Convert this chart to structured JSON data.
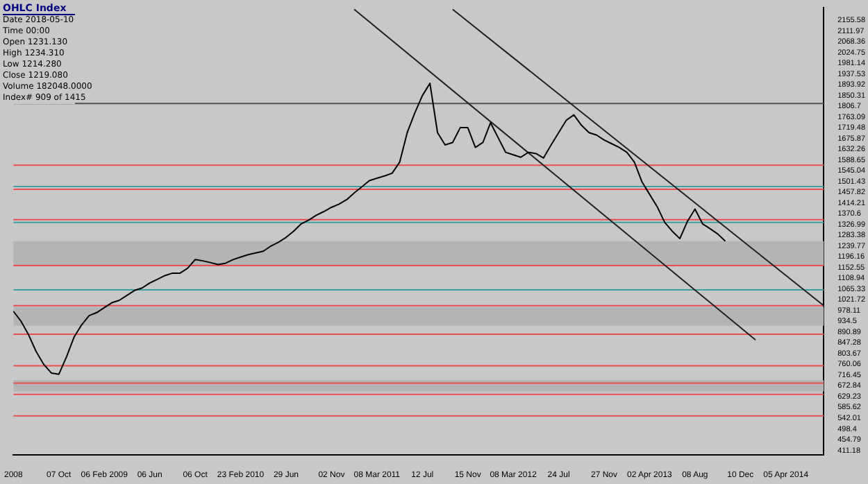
{
  "chart_data": {
    "type": "line",
    "title": "OHLC Index",
    "annotations": [
      "Date 2018-05-10",
      "Time 00:00",
      "Open 1231.130",
      "High 1234.310",
      "Low 1214.280",
      "Close 1219.080",
      "Volume 182048.0000",
      "Index# 909 of 1415"
    ],
    "categories": [
      "2008",
      null,
      null,
      null,
      null,
      null,
      "07 Oct",
      null,
      null,
      null,
      null,
      null,
      "06 Feb 2009",
      null,
      null,
      null,
      null,
      null,
      "06 Jun",
      null,
      null,
      null,
      null,
      null,
      "06 Oct",
      null,
      null,
      null,
      null,
      null,
      "23 Feb 2010",
      null,
      null,
      null,
      null,
      null,
      "29 Jun",
      null,
      null,
      null,
      null,
      null,
      "02 Nov",
      null,
      null,
      null,
      null,
      null,
      "08 Mar 2011",
      null,
      null,
      null,
      null,
      null,
      "12 Jul",
      null,
      null,
      null,
      null,
      null,
      "15 Nov",
      null,
      null,
      null,
      null,
      null,
      "08 Mar 2012",
      null,
      null,
      null,
      null,
      null,
      "24 Jul",
      null,
      null,
      null,
      null,
      null,
      "27 Nov",
      null,
      null,
      null,
      null,
      null,
      "02 Apr 2013",
      null,
      null,
      null,
      null,
      null,
      "08 Aug",
      null,
      null,
      null,
      null,
      null,
      "10 Dec",
      null,
      null,
      null,
      null,
      null,
      "05 Apr 2014",
      null,
      null,
      null,
      null,
      null
    ],
    "series": [
      {
        "color": "#000000",
        "values": [
          975,
          935,
          880,
          812,
          760,
          725,
          720,
          790,
          870,
          920,
          958,
          970,
          990,
          1010,
          1020,
          1040,
          1060,
          1070,
          1090,
          1105,
          1120,
          1130,
          1130,
          1150,
          1185,
          1180,
          1173,
          1165,
          1170,
          1185,
          1195,
          1205,
          1212,
          1219,
          1240,
          1255,
          1275,
          1300,
          1330,
          1345,
          1365,
          1380,
          1397,
          1410,
          1428,
          1455,
          1480,
          1505,
          1515,
          1524,
          1535,
          1580,
          1700,
          1780,
          1850,
          1900,
          1700,
          1650,
          1660,
          1720,
          1720,
          1640,
          1660,
          1740,
          1680,
          1620,
          1610,
          1600,
          1620,
          1615,
          1597,
          1650,
          1700,
          1750,
          1772,
          1730,
          1700,
          1690,
          1670,
          1655,
          1640,
          1620,
          1580,
          1500,
          1450,
          1400,
          1336,
          1300,
          1270,
          1340,
          1390,
          1330,
          1310,
          1289,
          1260,
          null,
          null,
          null,
          null,
          null,
          null,
          null,
          null,
          null,
          null,
          null,
          null,
          null
        ]
      },
      {
        "type": "line",
        "color": "#202020",
        "values": [
          null,
          null,
          null,
          null,
          null,
          null,
          null,
          null,
          null,
          null,
          null,
          null,
          null,
          null,
          null,
          null,
          null,
          null,
          null,
          null,
          null,
          null,
          null,
          null,
          null,
          null,
          null,
          null,
          null,
          null,
          null,
          null,
          null,
          null,
          null,
          null,
          null,
          null,
          null,
          null,
          null,
          null,
          null,
          null,
          null,
          null,
          null,
          null,
          null,
          null,
          null,
          null,
          null,
          null,
          null,
          null,
          null,
          null,
          2200,
          null,
          null,
          null,
          null,
          null,
          null,
          null,
          null,
          null,
          null,
          null,
          null,
          null,
          null,
          null,
          null,
          null,
          null,
          null,
          null,
          null,
          null,
          null,
          null,
          null,
          null,
          null,
          null,
          null,
          null,
          null,
          null,
          null,
          null,
          null,
          null,
          null,
          null,
          null,
          null,
          null,
          null,
          null,
          null,
          null,
          null,
          null,
          null,
          998
        ]
      },
      {
        "type": "line",
        "color": "#202020",
        "values": [
          null,
          null,
          null,
          null,
          null,
          null,
          null,
          null,
          null,
          null,
          null,
          null,
          null,
          null,
          null,
          null,
          null,
          null,
          null,
          null,
          null,
          null,
          null,
          null,
          null,
          null,
          null,
          null,
          null,
          null,
          null,
          null,
          null,
          null,
          null,
          null,
          null,
          null,
          null,
          null,
          null,
          null,
          null,
          null,
          null,
          2200,
          null,
          null,
          null,
          null,
          null,
          null,
          null,
          null,
          null,
          null,
          null,
          null,
          null,
          null,
          null,
          null,
          null,
          null,
          null,
          null,
          null,
          null,
          null,
          null,
          null,
          null,
          null,
          null,
          null,
          null,
          null,
          null,
          null,
          null,
          null,
          null,
          null,
          null,
          null,
          null,
          null,
          null,
          null,
          null,
          null,
          null,
          null,
          null,
          null,
          null,
          null,
          null,
          859,
          null,
          null,
          null,
          null,
          null,
          null,
          null,
          null,
          null
        ]
      }
    ],
    "ylim": [
      394,
      2208
    ],
    "yticks": [
      411.18,
      454.79,
      498.4,
      542.01,
      585.62,
      629.23,
      672.84,
      716.45,
      760.06,
      803.67,
      847.28,
      890.89,
      934.5,
      978.11,
      1021.72,
      1065.33,
      1108.94,
      1152.55,
      1196.16,
      1239.77,
      1283.38,
      1326.99,
      1370.6,
      1414.21,
      1457.82,
      1501.43,
      1545.04,
      1588.65,
      1632.26,
      1675.87,
      1719.48,
      1763.09,
      1806.7,
      1850.31,
      1893.92,
      1937.53,
      1981.14,
      2024.75,
      2068.36,
      2111.97,
      2155.58
    ],
    "bands": [
      {
        "axis": "y",
        "from": 1161,
        "to": 1260,
        "color": "#b4b4b4"
      },
      {
        "axis": "y",
        "from": 917,
        "to": 993,
        "color": "#b4b4b4"
      },
      {
        "axis": "y",
        "from": 650,
        "to": 696,
        "color": "#b4b4b4"
      }
    ],
    "ref_lines": [
      {
        "axis": "y",
        "value": 1818,
        "color": "#505050"
      },
      {
        "axis": "y",
        "value": 1568,
        "color": "#e85050"
      },
      {
        "axis": "y",
        "value": 1481,
        "color": "#40a0a0"
      },
      {
        "axis": "y",
        "value": 1470,
        "color": "#e85050"
      },
      {
        "axis": "y",
        "value": 1347,
        "color": "#e85050"
      },
      {
        "axis": "y",
        "value": 1336,
        "color": "#40a0a0"
      },
      {
        "axis": "y",
        "value": 1161,
        "color": "#e85050"
      },
      {
        "axis": "y",
        "value": 1062,
        "color": "#40a0a0"
      },
      {
        "axis": "y",
        "value": 998,
        "color": "#e85050"
      },
      {
        "axis": "y",
        "value": 882,
        "color": "#e85050"
      },
      {
        "axis": "y",
        "value": 754,
        "color": "#e85050"
      },
      {
        "axis": "y",
        "value": 684,
        "color": "#e85050"
      },
      {
        "axis": "y",
        "value": 638,
        "color": "#e85050"
      },
      {
        "axis": "y",
        "value": 551,
        "color": "#e85050"
      }
    ],
    "grid": false,
    "legend": false,
    "marker": "none",
    "line_style": "solid"
  }
}
